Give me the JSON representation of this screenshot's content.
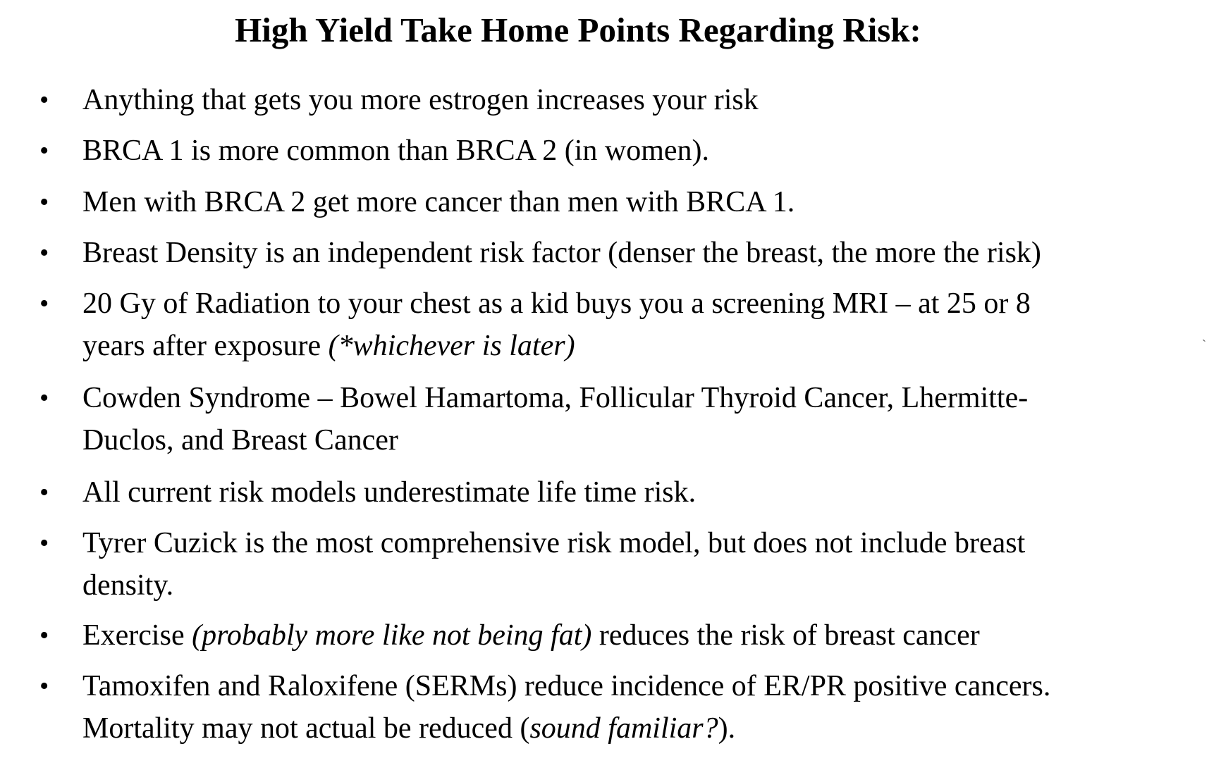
{
  "title": "High Yield Take Home Points Regarding Risk:",
  "bullet_glyph": "•",
  "points": [
    {
      "pre": "Anything that gets you more estrogen increases your risk"
    },
    {
      "pre": "BRCA 1 is more common than BRCA 2 (in women)."
    },
    {
      "pre": "Men with BRCA 2 get more cancer than men with BRCA 1."
    },
    {
      "pre": "Breast Density is an independent risk factor (denser the breast, the more the risk)"
    },
    {
      "pre": "20 Gy of Radiation to your chest as a kid buys you a screening MRI – at 25 or 8 years after exposure ",
      "italic": "(*whichever is later)"
    },
    {
      "pre": "Cowden Syndrome – Bowel Hamartoma, Follicular Thyroid Cancer, Lhermitte-Duclos, and Breast Cancer"
    },
    {
      "pre": "All current risk models underestimate life time risk."
    },
    {
      "pre": "Tyrer Cuzick is the most comprehensive risk model, but does not include breast density."
    },
    {
      "pre": "Exercise ",
      "italic": "(probably more like not being fat)",
      "post": " reduces the risk of breast cancer"
    },
    {
      "pre": "Tamoxifen and Raloxifene (SERMs) reduce incidence of ER/PR positive cancers. Mortality may not actual be reduced (",
      "italic": "sound familiar?",
      "post": ")."
    }
  ]
}
